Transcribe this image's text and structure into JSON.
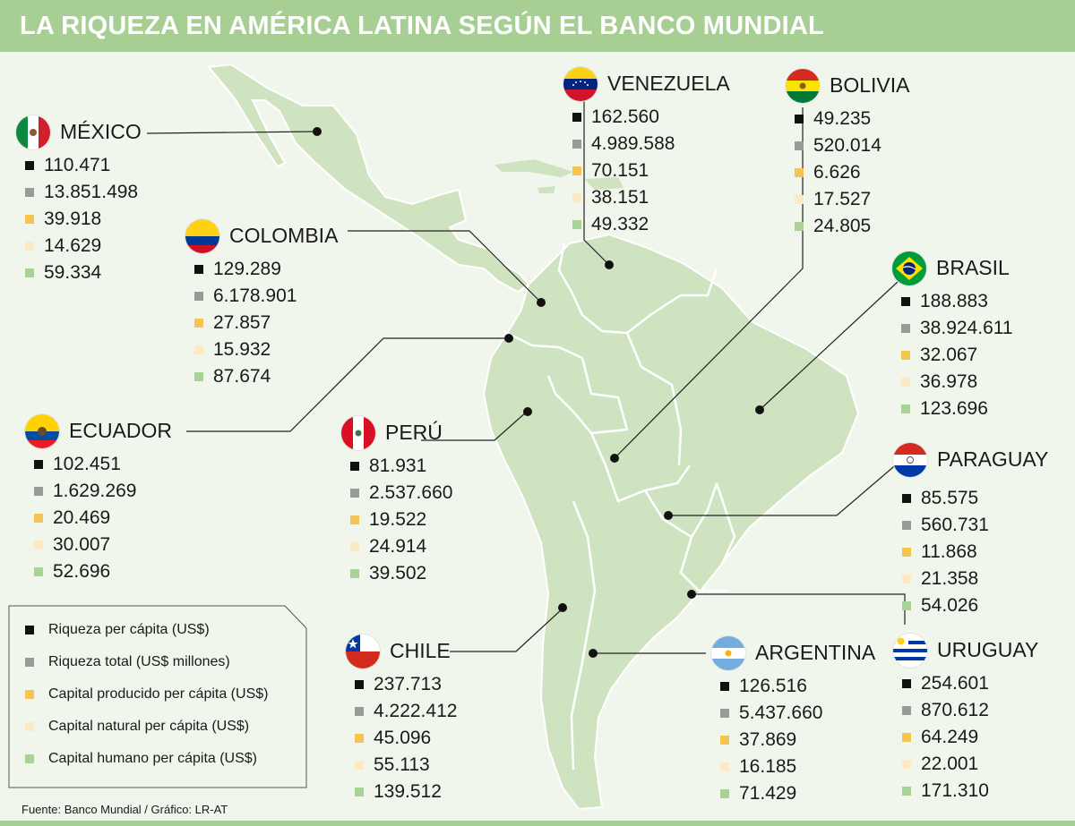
{
  "title": "LA RIQUEZA EN AMÉRICA LATINA SEGÚN EL BANCO MUNDIAL",
  "source": "Fuente: Banco Mundial / Gráfico: LR-AT",
  "colors": {
    "title_bar": "#a8cf93",
    "background": "#f1f6ec",
    "land": "#cfe3c0",
    "country_border": "#ffffff",
    "leader_line": "#222222"
  },
  "legend": [
    {
      "label": "Riqueza per cápita (US$)",
      "color": "#111111"
    },
    {
      "label": "Riqueza total (US$ millones)",
      "color": "#9a9a9a"
    },
    {
      "label": "Capital producido per cápita (US$)",
      "color": "#f5c451"
    },
    {
      "label": "Capital natural per cápita (US$)",
      "color": "#fde9c3"
    },
    {
      "label": "Capital humano per cápita (US$)",
      "color": "#a9d395"
    }
  ],
  "countries": [
    {
      "name": "MÉXICO",
      "flag": "mexico-flag-icon",
      "values": [
        "110.471",
        "13.851.498",
        "39.918",
        "14.629",
        "59.334"
      ]
    },
    {
      "name": "COLOMBIA",
      "flag": "colombia-flag-icon",
      "values": [
        "129.289",
        "6.178.901",
        "27.857",
        "15.932",
        "87.674"
      ]
    },
    {
      "name": "ECUADOR",
      "flag": "ecuador-flag-icon",
      "values": [
        "102.451",
        "1.629.269",
        "20.469",
        "30.007",
        "52.696"
      ]
    },
    {
      "name": "VENEZUELA",
      "flag": "venezuela-flag-icon",
      "values": [
        "162.560",
        "4.989.588",
        "70.151",
        "38.151",
        "49.332"
      ]
    },
    {
      "name": "BOLIVIA",
      "flag": "bolivia-flag-icon",
      "values": [
        "49.235",
        "520.014",
        "6.626",
        "17.527",
        "24.805"
      ]
    },
    {
      "name": "BRASIL",
      "flag": "brazil-flag-icon",
      "values": [
        "188.883",
        "38.924.611",
        "32.067",
        "36.978",
        "123.696"
      ]
    },
    {
      "name": "PERÚ",
      "flag": "peru-flag-icon",
      "values": [
        "81.931",
        "2.537.660",
        "19.522",
        "24.914",
        "39.502"
      ]
    },
    {
      "name": "PARAGUAY",
      "flag": "paraguay-flag-icon",
      "values": [
        "85.575",
        "560.731",
        "11.868",
        "21.358",
        "54.026"
      ]
    },
    {
      "name": "CHILE",
      "flag": "chile-flag-icon",
      "values": [
        "237.713",
        "4.222.412",
        "45.096",
        "55.113",
        "139.512"
      ]
    },
    {
      "name": "ARGENTINA",
      "flag": "argentina-flag-icon",
      "values": [
        "126.516",
        "5.437.660",
        "37.869",
        "16.185",
        "71.429"
      ]
    },
    {
      "name": "URUGUAY",
      "flag": "uruguay-flag-icon",
      "values": [
        "254.601",
        "870.612",
        "64.249",
        "22.001",
        "171.310"
      ]
    }
  ]
}
